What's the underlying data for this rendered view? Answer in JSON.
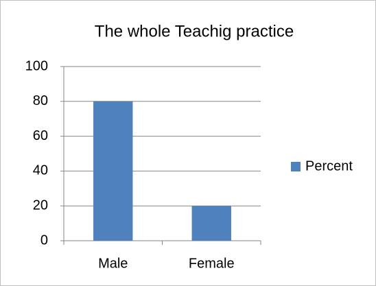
{
  "chart_data": {
    "type": "bar",
    "title": "The whole Teachig practice",
    "categories": [
      "Male",
      "Female"
    ],
    "series": [
      {
        "name": "Percent",
        "color": "#4f81bd",
        "values": [
          80,
          20
        ]
      }
    ],
    "ylim": [
      0,
      100
    ],
    "yticks": [
      0,
      20,
      40,
      60,
      80,
      100
    ],
    "grid": true,
    "legend": "right"
  }
}
